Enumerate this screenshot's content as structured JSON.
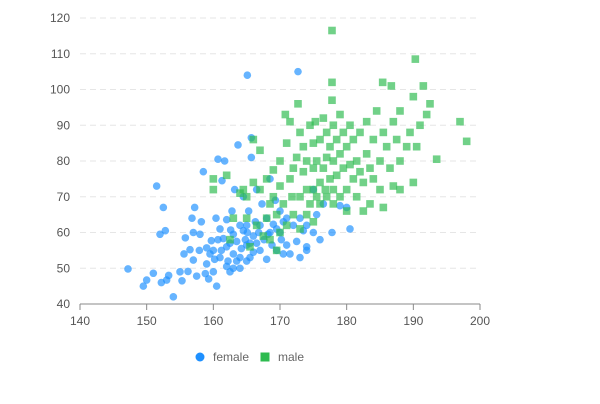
{
  "chart_data": {
    "type": "scatter",
    "title": "",
    "xlabel": "",
    "ylabel": "",
    "xlim": [
      140,
      200
    ],
    "ylim": [
      40,
      120
    ],
    "x_ticks": [
      140,
      150,
      160,
      170,
      180,
      190,
      200
    ],
    "y_ticks": [
      40,
      50,
      60,
      70,
      80,
      90,
      100,
      110,
      120
    ],
    "grid": {
      "horizontal": true,
      "vertical": false,
      "style": "dashed"
    },
    "legend": {
      "position": "bottom-left"
    },
    "series": [
      {
        "name": "female",
        "marker": "circle",
        "color": "#1e90ff",
        "points": [
          [
            147.2,
            49.8
          ],
          [
            149.5,
            45.0
          ],
          [
            150.0,
            46.7
          ],
          [
            151.0,
            48.6
          ],
          [
            151.5,
            73.0
          ],
          [
            152.0,
            59.5
          ],
          [
            152.2,
            46.0
          ],
          [
            152.5,
            67.0
          ],
          [
            152.8,
            60.5
          ],
          [
            153.0,
            46.7
          ],
          [
            153.3,
            48.0
          ],
          [
            154.0,
            42.0
          ],
          [
            155.0,
            49.0
          ],
          [
            155.3,
            46.5
          ],
          [
            155.6,
            54.0
          ],
          [
            155.8,
            58.5
          ],
          [
            156.2,
            49.1
          ],
          [
            156.5,
            55.2
          ],
          [
            156.8,
            64.0
          ],
          [
            157.0,
            60.0
          ],
          [
            157.0,
            52.3
          ],
          [
            157.2,
            67.0
          ],
          [
            157.5,
            47.8
          ],
          [
            157.9,
            55.0
          ],
          [
            158.0,
            59.5
          ],
          [
            158.2,
            63.0
          ],
          [
            158.5,
            77.0
          ],
          [
            158.8,
            48.5
          ],
          [
            159.0,
            55.7
          ],
          [
            159.0,
            51.2
          ],
          [
            159.3,
            47.0
          ],
          [
            159.5,
            54.0
          ],
          [
            159.7,
            57.7
          ],
          [
            160.0,
            55.0
          ],
          [
            160.0,
            49.0
          ],
          [
            160.2,
            52.5
          ],
          [
            160.4,
            64.0
          ],
          [
            160.5,
            45.0
          ],
          [
            160.7,
            58.0
          ],
          [
            160.7,
            80.5
          ],
          [
            161.0,
            53.0
          ],
          [
            161.0,
            61.0
          ],
          [
            161.2,
            55.0
          ],
          [
            161.3,
            74.5
          ],
          [
            161.5,
            58.3
          ],
          [
            161.7,
            80.0
          ],
          [
            162.0,
            50.5
          ],
          [
            162.0,
            56.0
          ],
          [
            162.0,
            63.6
          ],
          [
            162.2,
            52.0
          ],
          [
            162.5,
            49.0
          ],
          [
            162.5,
            57.0
          ],
          [
            162.6,
            60.7
          ],
          [
            162.8,
            66.0
          ],
          [
            163.0,
            50.0
          ],
          [
            163.0,
            54.0
          ],
          [
            163.0,
            59.5
          ],
          [
            163.2,
            72.0
          ],
          [
            163.5,
            57.5
          ],
          [
            163.5,
            52.0
          ],
          [
            163.7,
            84.5
          ],
          [
            164.0,
            53.0
          ],
          [
            164.0,
            62.0
          ],
          [
            164.0,
            50.0
          ],
          [
            164.2,
            55.5
          ],
          [
            164.5,
            60.5
          ],
          [
            164.5,
            70.0
          ],
          [
            164.8,
            58.0
          ],
          [
            165.0,
            56.5
          ],
          [
            165.0,
            62.0
          ],
          [
            165.0,
            52.0
          ],
          [
            165.1,
            104.0
          ],
          [
            165.1,
            60.0
          ],
          [
            165.3,
            66.0
          ],
          [
            165.5,
            57.0
          ],
          [
            165.5,
            53.0
          ],
          [
            165.7,
            86.5
          ],
          [
            165.7,
            81.0
          ],
          [
            166.0,
            59.0
          ],
          [
            166.0,
            54.5
          ],
          [
            166.3,
            63.0
          ],
          [
            166.5,
            57.0
          ],
          [
            166.5,
            72.0
          ],
          [
            166.8,
            60.0
          ],
          [
            167.0,
            55.0
          ],
          [
            167.0,
            62.0
          ],
          [
            167.3,
            68.0
          ],
          [
            167.6,
            58.0
          ],
          [
            168.0,
            52.5
          ],
          [
            168.0,
            64.0
          ],
          [
            168.2,
            59.5
          ],
          [
            168.5,
            60.0
          ],
          [
            168.5,
            75.0
          ],
          [
            168.8,
            56.5
          ],
          [
            169.0,
            62.3
          ],
          [
            169.3,
            69.0
          ],
          [
            169.5,
            55.0
          ],
          [
            169.5,
            61.0
          ],
          [
            170.0,
            60.0
          ],
          [
            170.0,
            66.0
          ],
          [
            170.2,
            58.0
          ],
          [
            170.5,
            63.0
          ],
          [
            170.5,
            54.0
          ],
          [
            171.0,
            56.5
          ],
          [
            171.0,
            64.0
          ],
          [
            171.5,
            54.0
          ],
          [
            172.0,
            62.0
          ],
          [
            172.5,
            57.5
          ],
          [
            172.7,
            105.0
          ],
          [
            173.0,
            53.0
          ],
          [
            173.0,
            64.0
          ],
          [
            173.5,
            60.5
          ],
          [
            174.0,
            55.0
          ],
          [
            174.0,
            62.0
          ],
          [
            174.0,
            56.0
          ],
          [
            175.0,
            60.0
          ],
          [
            175.0,
            72.0
          ],
          [
            175.5,
            65.0
          ],
          [
            176.0,
            58.0
          ],
          [
            176.5,
            68.0
          ],
          [
            177.8,
            60.0
          ],
          [
            179.0,
            67.5
          ],
          [
            180.0,
            67.0
          ],
          [
            180.5,
            61.0
          ]
        ]
      },
      {
        "name": "male",
        "marker": "square",
        "color": "#2dbb4f",
        "points": [
          [
            160.0,
            75.0
          ],
          [
            160.0,
            72.0
          ],
          [
            162.0,
            76.0
          ],
          [
            162.5,
            58.0
          ],
          [
            163.0,
            64.0
          ],
          [
            164.0,
            71.0
          ],
          [
            164.5,
            72.0
          ],
          [
            165.0,
            64.0
          ],
          [
            165.0,
            70.0
          ],
          [
            165.5,
            56.0
          ],
          [
            166.0,
            86.0
          ],
          [
            166.0,
            74.0
          ],
          [
            166.5,
            62.0
          ],
          [
            167.0,
            83.0
          ],
          [
            167.0,
            72.0
          ],
          [
            167.5,
            59.0
          ],
          [
            168.0,
            64.0
          ],
          [
            168.0,
            75.0
          ],
          [
            168.5,
            68.0
          ],
          [
            168.5,
            58.0
          ],
          [
            169.0,
            70.0
          ],
          [
            169.0,
            77.5
          ],
          [
            169.5,
            65.0
          ],
          [
            169.5,
            55.0
          ],
          [
            170.0,
            73.0
          ],
          [
            170.0,
            80.0
          ],
          [
            170.0,
            60.0
          ],
          [
            170.5,
            68.0
          ],
          [
            170.8,
            93.0
          ],
          [
            171.0,
            85.0
          ],
          [
            171.0,
            62.0
          ],
          [
            171.5,
            75.0
          ],
          [
            171.5,
            91.0
          ],
          [
            171.8,
            70.0
          ],
          [
            172.0,
            78.0
          ],
          [
            172.0,
            65.0
          ],
          [
            172.5,
            81.0
          ],
          [
            172.7,
            96.0
          ],
          [
            173.0,
            70.0
          ],
          [
            173.0,
            88.0
          ],
          [
            173.0,
            61.0
          ],
          [
            173.5,
            77.0
          ],
          [
            173.5,
            84.0
          ],
          [
            174.0,
            72.0
          ],
          [
            174.0,
            65.0
          ],
          [
            174.0,
            80.0
          ],
          [
            174.5,
            90.0
          ],
          [
            174.5,
            68.0
          ],
          [
            175.0,
            72.0
          ],
          [
            175.0,
            85.0
          ],
          [
            175.0,
            78.0
          ],
          [
            175.0,
            63.0
          ],
          [
            175.3,
            91.0
          ],
          [
            175.5,
            70.0
          ],
          [
            175.5,
            80.0
          ],
          [
            176.0,
            74.0
          ],
          [
            176.0,
            86.0
          ],
          [
            176.0,
            68.0
          ],
          [
            176.5,
            78.0
          ],
          [
            176.5,
            92.0
          ],
          [
            176.8,
            72.0
          ],
          [
            177.0,
            81.0
          ],
          [
            177.0,
            70.0
          ],
          [
            177.0,
            88.0
          ],
          [
            177.5,
            75.0
          ],
          [
            177.5,
            84.0
          ],
          [
            177.8,
            116.5
          ],
          [
            177.8,
            102.0
          ],
          [
            177.8,
            97.0
          ],
          [
            178.0,
            72.0
          ],
          [
            178.0,
            80.0
          ],
          [
            178.0,
            68.0
          ],
          [
            178.0,
            90.0
          ],
          [
            178.5,
            76.0
          ],
          [
            178.5,
            86.0
          ],
          [
            179.0,
            70.0
          ],
          [
            179.0,
            82.0
          ],
          [
            179.0,
            93.0
          ],
          [
            179.5,
            78.0
          ],
          [
            179.5,
            88.0
          ],
          [
            180.0,
            72.0
          ],
          [
            180.0,
            84.0
          ],
          [
            180.0,
            66.0
          ],
          [
            180.5,
            79.0
          ],
          [
            180.5,
            90.0
          ],
          [
            181.0,
            75.0
          ],
          [
            181.0,
            86.0
          ],
          [
            181.5,
            70.0
          ],
          [
            181.5,
            80.0
          ],
          [
            182.0,
            77.0
          ],
          [
            182.0,
            88.0
          ],
          [
            182.5,
            66.0
          ],
          [
            182.5,
            74.0
          ],
          [
            183.0,
            82.0
          ],
          [
            183.0,
            91.0
          ],
          [
            183.5,
            78.0
          ],
          [
            183.5,
            68.0
          ],
          [
            184.0,
            86.0
          ],
          [
            184.0,
            75.0
          ],
          [
            184.5,
            94.0
          ],
          [
            185.0,
            80.0
          ],
          [
            185.0,
            72.0
          ],
          [
            185.4,
            102.0
          ],
          [
            185.5,
            88.0
          ],
          [
            185.5,
            67.0
          ],
          [
            186.0,
            84.0
          ],
          [
            186.5,
            78.0
          ],
          [
            186.7,
            101.0
          ],
          [
            187.0,
            91.0
          ],
          [
            187.0,
            73.0
          ],
          [
            187.5,
            86.0
          ],
          [
            188.0,
            80.0
          ],
          [
            188.0,
            94.0
          ],
          [
            188.0,
            72.0
          ],
          [
            189.0,
            84.0
          ],
          [
            189.5,
            88.0
          ],
          [
            190.0,
            98.0
          ],
          [
            190.0,
            74.0
          ],
          [
            190.3,
            108.5
          ],
          [
            190.5,
            84.0
          ],
          [
            191.0,
            90.0
          ],
          [
            191.5,
            101.0
          ],
          [
            192.0,
            93.0
          ],
          [
            192.5,
            96.0
          ],
          [
            193.5,
            80.5
          ],
          [
            197.0,
            91.0
          ],
          [
            198.0,
            85.5
          ]
        ]
      }
    ]
  }
}
